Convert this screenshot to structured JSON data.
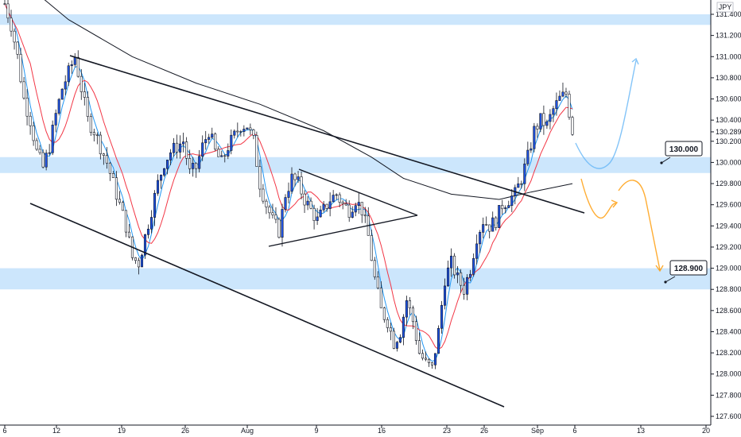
{
  "chart_data": {
    "type": "candlestick",
    "instrument_label": "JPY",
    "current_price_label": "130.289",
    "x_ticks": [
      "6",
      "12",
      "19",
      "26",
      "Aug",
      "9",
      "16",
      "23",
      "26",
      "Sep",
      "6",
      "13",
      "20"
    ],
    "y_ticks": [
      "131.400",
      "131.200",
      "131.000",
      "130.800",
      "130.600",
      "130.400",
      "130.200",
      "130.000",
      "129.800",
      "129.600",
      "129.400",
      "129.200",
      "129.000",
      "128.800",
      "128.600",
      "128.400",
      "128.200",
      "128.000",
      "127.800",
      "127.600"
    ],
    "ylim": [
      127.55,
      131.6
    ],
    "grid": false,
    "levels": [
      {
        "label": "130.000",
        "zone": [
          129.9,
          130.05
        ]
      },
      {
        "label": "128.900",
        "zone": [
          128.8,
          129.0
        ]
      },
      {
        "label": "",
        "zone": [
          131.3,
          131.4
        ]
      }
    ],
    "colors": {
      "up": "#1e53e5",
      "down": "#ffffff",
      "wick": "#131722",
      "ma_fast": "#2196f3",
      "ma_medium": "#f23645",
      "ma_slow": "#131722",
      "zone": "#bbdefb",
      "arrow_bull": "#64b5f6",
      "arrow_bear": "#ff9800"
    },
    "price_path": [
      [
        0,
        131.5
      ],
      [
        2,
        131.3
      ],
      [
        4,
        131.0
      ],
      [
        6,
        130.6
      ],
      [
        8,
        130.4
      ],
      [
        10,
        130.1
      ],
      [
        12,
        129.95
      ],
      [
        14,
        130.15
      ],
      [
        16,
        130.45
      ],
      [
        18,
        130.7
      ],
      [
        20,
        130.85
      ],
      [
        22,
        131.0
      ],
      [
        24,
        130.7
      ],
      [
        26,
        130.4
      ],
      [
        28,
        130.3
      ],
      [
        30,
        130.15
      ],
      [
        32,
        130.0
      ],
      [
        34,
        129.8
      ],
      [
        36,
        129.6
      ],
      [
        38,
        129.4
      ],
      [
        40,
        129.1
      ],
      [
        42,
        129.05
      ],
      [
        44,
        129.3
      ],
      [
        46,
        129.55
      ],
      [
        48,
        129.8
      ],
      [
        50,
        130.0
      ],
      [
        52,
        130.1
      ],
      [
        54,
        130.15
      ],
      [
        56,
        130.2
      ],
      [
        58,
        129.9
      ],
      [
        60,
        129.95
      ],
      [
        62,
        130.15
      ],
      [
        64,
        130.3
      ],
      [
        66,
        130.1
      ],
      [
        68,
        130.0
      ],
      [
        70,
        130.15
      ],
      [
        72,
        130.25
      ],
      [
        74,
        130.35
      ],
      [
        76,
        130.35
      ],
      [
        78,
        130.2
      ],
      [
        80,
        129.8
      ],
      [
        82,
        129.6
      ],
      [
        84,
        129.45
      ],
      [
        86,
        129.35
      ],
      [
        88,
        129.7
      ],
      [
        90,
        129.85
      ],
      [
        92,
        129.8
      ],
      [
        94,
        129.65
      ],
      [
        96,
        129.55
      ],
      [
        98,
        129.45
      ],
      [
        100,
        129.55
      ],
      [
        102,
        129.65
      ],
      [
        104,
        129.7
      ],
      [
        106,
        129.6
      ],
      [
        108,
        129.55
      ],
      [
        110,
        129.65
      ],
      [
        112,
        129.55
      ],
      [
        114,
        129.3
      ],
      [
        116,
        128.9
      ],
      [
        118,
        128.6
      ],
      [
        120,
        128.5
      ],
      [
        122,
        128.3
      ],
      [
        124,
        128.4
      ],
      [
        126,
        128.7
      ],
      [
        128,
        128.5
      ],
      [
        130,
        128.2
      ],
      [
        132,
        128.1
      ],
      [
        134,
        128.05
      ],
      [
        136,
        128.4
      ],
      [
        138,
        128.9
      ],
      [
        140,
        129.05
      ],
      [
        142,
        128.9
      ],
      [
        144,
        128.8
      ],
      [
        146,
        129.0
      ],
      [
        148,
        129.3
      ],
      [
        150,
        129.45
      ],
      [
        152,
        129.4
      ],
      [
        154,
        129.45
      ],
      [
        156,
        129.6
      ],
      [
        158,
        129.65
      ],
      [
        160,
        129.7
      ],
      [
        162,
        129.85
      ],
      [
        164,
        130.05
      ],
      [
        166,
        130.3
      ],
      [
        168,
        130.4
      ],
      [
        170,
        130.35
      ],
      [
        172,
        130.5
      ],
      [
        174,
        130.6
      ],
      [
        176,
        130.65
      ],
      [
        178,
        130.3
      ]
    ]
  }
}
